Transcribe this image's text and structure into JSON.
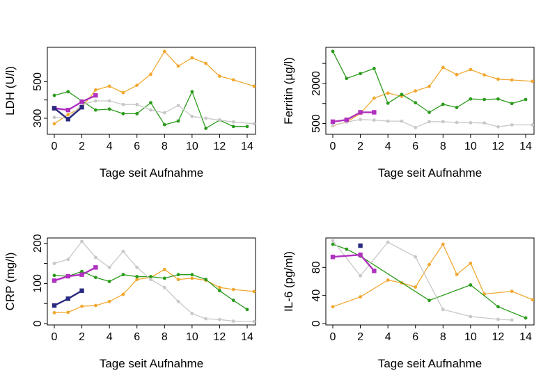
{
  "colors": {
    "orange": "#f0a830",
    "green": "#2a9a1a",
    "gray": "#c8c8c8",
    "purple": "#b030c0",
    "navy": "#2a2a80"
  },
  "chart_data": [
    {
      "type": "line",
      "xlabel": "Tage seit Aufnahme",
      "ylabel": "LDH (U/l)",
      "xlim": [
        0,
        14
      ],
      "ylim": [
        220,
        680
      ],
      "xticks": [
        0,
        2,
        4,
        6,
        8,
        10,
        12,
        14
      ],
      "yticks": [
        300,
        400,
        500
      ],
      "ytick_labels": [
        "300",
        "",
        "500"
      ],
      "series": [
        {
          "color": "orange",
          "marker": "circle",
          "x": [
            0,
            1,
            2,
            3,
            4,
            5,
            6,
            7,
            8,
            9,
            10,
            11,
            12,
            13,
            14.5
          ],
          "y": [
            270,
            320,
            360,
            455,
            475,
            440,
            480,
            540,
            665,
            585,
            630,
            600,
            530,
            510,
            475
          ]
        },
        {
          "color": "green",
          "marker": "circle",
          "x": [
            0,
            1,
            2,
            3,
            4,
            5,
            6,
            7,
            8,
            9,
            10,
            11,
            12,
            13,
            14
          ],
          "y": [
            425,
            445,
            395,
            345,
            350,
            325,
            325,
            385,
            265,
            285,
            445,
            245,
            290,
            255,
            255
          ]
        },
        {
          "color": "gray",
          "marker": "circle",
          "x": [
            0,
            1,
            2,
            3,
            4,
            5,
            6,
            7,
            8,
            9,
            10,
            11,
            12,
            13,
            14.5
          ],
          "y": [
            305,
            300,
            375,
            395,
            395,
            375,
            375,
            345,
            330,
            370,
            310,
            300,
            290,
            280,
            270
          ]
        },
        {
          "color": "purple",
          "marker": "square",
          "x": [
            0,
            1,
            2,
            3
          ],
          "y": [
            355,
            345,
            390,
            425
          ]
        },
        {
          "color": "navy",
          "marker": "square",
          "x": [
            0,
            1,
            2
          ],
          "y": [
            355,
            295,
            360
          ]
        }
      ]
    },
    {
      "type": "line",
      "xlabel": "Tage seit Aufnahme",
      "ylabel": "Ferritin (µg/l)",
      "xlim": [
        0,
        14
      ],
      "ylim": [
        150,
        3300
      ],
      "xticks": [
        0,
        2,
        4,
        6,
        8,
        10,
        12,
        14
      ],
      "yticks": [
        500,
        1250,
        2000,
        2750
      ],
      "ytick_labels": [
        "500",
        "",
        "2000",
        ""
      ],
      "series": [
        {
          "color": "orange",
          "marker": "circle",
          "x": [
            0,
            1,
            2,
            3,
            4,
            5,
            6,
            7,
            8,
            9,
            10,
            11,
            12,
            13,
            14.5
          ],
          "y": [
            420,
            560,
            880,
            1450,
            1640,
            1520,
            1720,
            1890,
            2600,
            2330,
            2520,
            2320,
            2160,
            2130,
            2080
          ]
        },
        {
          "color": "green",
          "marker": "circle",
          "x": [
            0,
            1,
            2,
            3,
            4,
            5,
            6,
            7,
            8,
            9,
            10,
            11,
            12,
            13,
            14
          ],
          "y": [
            3200,
            2190,
            2370,
            2560,
            1260,
            1590,
            1280,
            920,
            1220,
            1100,
            1420,
            1400,
            1420,
            1250,
            1400
          ]
        },
        {
          "color": "gray",
          "marker": "circle",
          "x": [
            0,
            1,
            2,
            3,
            4,
            5,
            6,
            7,
            8,
            9,
            10,
            11,
            12,
            13,
            14.5
          ],
          "y": [
            430,
            560,
            650,
            630,
            590,
            590,
            350,
            570,
            570,
            540,
            530,
            520,
            380,
            450,
            450
          ]
        },
        {
          "color": "purple",
          "marker": "square",
          "x": [
            0,
            1,
            2,
            3
          ],
          "y": [
            570,
            640,
            920,
            920
          ]
        }
      ]
    },
    {
      "type": "line",
      "xlabel": "Tage seit Aufnahme",
      "ylabel": "CRP (mg/l)",
      "xlim": [
        0,
        14
      ],
      "ylim": [
        0,
        210
      ],
      "xticks": [
        0,
        2,
        4,
        6,
        8,
        10,
        12,
        14
      ],
      "yticks": [
        0,
        50,
        100,
        150,
        200
      ],
      "ytick_labels": [
        "0",
        "",
        "100",
        "",
        "200"
      ],
      "series": [
        {
          "color": "orange",
          "marker": "circle",
          "x": [
            0,
            1,
            2,
            3,
            4,
            5,
            6,
            7,
            8,
            9,
            10,
            11,
            12,
            13,
            14.5
          ],
          "y": [
            27,
            28,
            43,
            45,
            55,
            73,
            110,
            115,
            135,
            110,
            113,
            108,
            90,
            85,
            80
          ]
        },
        {
          "color": "green",
          "marker": "circle",
          "x": [
            0,
            1,
            2,
            3,
            4,
            5,
            6,
            7,
            8,
            9,
            10,
            11,
            12,
            13,
            14
          ],
          "y": [
            120,
            118,
            130,
            115,
            105,
            122,
            117,
            117,
            113,
            122,
            122,
            110,
            82,
            58,
            35
          ]
        },
        {
          "color": "gray",
          "marker": "circle",
          "x": [
            0,
            1,
            2,
            3,
            4,
            5,
            6,
            7,
            8,
            9,
            10,
            11,
            12,
            13,
            14.5
          ],
          "y": [
            150,
            160,
            205,
            165,
            140,
            180,
            140,
            110,
            90,
            55,
            25,
            12,
            10,
            6,
            5
          ]
        },
        {
          "color": "purple",
          "marker": "square",
          "x": [
            0,
            1,
            2,
            3
          ],
          "y": [
            107,
            118,
            122,
            140
          ]
        },
        {
          "color": "navy",
          "marker": "square",
          "x": [
            0,
            1,
            2
          ],
          "y": [
            45,
            62,
            82
          ]
        }
      ]
    },
    {
      "type": "line",
      "xlabel": "Tage seit Aufnahme",
      "ylabel": "IL-6 (pg/ml)",
      "xlim": [
        0,
        14
      ],
      "ylim": [
        0,
        120
      ],
      "xticks": [
        0,
        2,
        4,
        6,
        8,
        10,
        12,
        14
      ],
      "yticks": [
        0,
        40,
        80
      ],
      "ytick_labels": [
        "0",
        "40",
        "80"
      ],
      "series": [
        {
          "color": "orange",
          "marker": "circle",
          "x": [
            0,
            2,
            4,
            5,
            6,
            7,
            8,
            9,
            10,
            11,
            13,
            14.5
          ],
          "y": [
            24,
            38,
            62,
            58,
            52,
            84,
            113,
            70,
            86,
            42,
            46,
            34
          ]
        },
        {
          "color": "green",
          "marker": "circle",
          "x": [
            0,
            1,
            2,
            7,
            10,
            12,
            14
          ],
          "y": [
            113,
            106,
            96,
            33,
            55,
            24,
            8
          ]
        },
        {
          "color": "gray",
          "marker": "circle",
          "x": [
            0,
            2,
            4,
            6,
            8,
            10,
            12,
            13
          ],
          "y": [
            118,
            68,
            116,
            95,
            20,
            10,
            6,
            5
          ]
        },
        {
          "color": "purple",
          "marker": "square",
          "x": [
            0,
            2,
            3
          ],
          "y": [
            95,
            98,
            75
          ]
        },
        {
          "color": "navy",
          "marker": "square",
          "x": [
            2
          ],
          "y": [
            111
          ]
        }
      ]
    }
  ]
}
